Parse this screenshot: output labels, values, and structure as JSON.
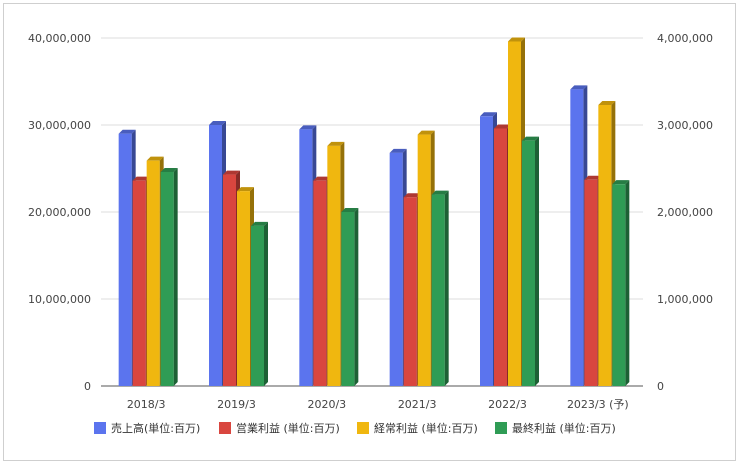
{
  "chart_data": {
    "type": "bar",
    "style": "3d-clustered",
    "categories": [
      "2018/3",
      "2019/3",
      "2020/3",
      "2021/3",
      "2022/3",
      "2023/3 (予)"
    ],
    "series": [
      {
        "name": "売上高(単位:百万)",
        "axis": "left",
        "color": "#5b74ee",
        "values": [
          29000000,
          30000000,
          29500000,
          26800000,
          31000000,
          34100000
        ]
      },
      {
        "name": "営業利益 (単位:百万)",
        "axis": "right",
        "color": "#d9463f",
        "values": [
          2360000,
          2430000,
          2360000,
          2170000,
          2960000,
          2370000
        ]
      },
      {
        "name": "経常利益 (単位:百万)",
        "axis": "right",
        "color": "#f0b70f",
        "values": [
          2590000,
          2240000,
          2760000,
          2890000,
          3960000,
          3230000
        ]
      },
      {
        "name": "最終利益 (単位:百万)",
        "axis": "right",
        "color": "#2f9c55",
        "values": [
          2460000,
          1840000,
          2000000,
          2200000,
          2820000,
          2320000
        ]
      }
    ],
    "y_left": {
      "min": 0,
      "max": 40000000,
      "ticks": [
        "0",
        "10,000,000",
        "20,000,000",
        "30,000,000",
        "40,000,000"
      ]
    },
    "y_right": {
      "min": 0,
      "max": 4000000,
      "ticks": [
        "0",
        "1,000,000",
        "2,000,000",
        "3,000,000",
        "4,000,000"
      ]
    },
    "grid": true,
    "legend_position": "bottom"
  }
}
